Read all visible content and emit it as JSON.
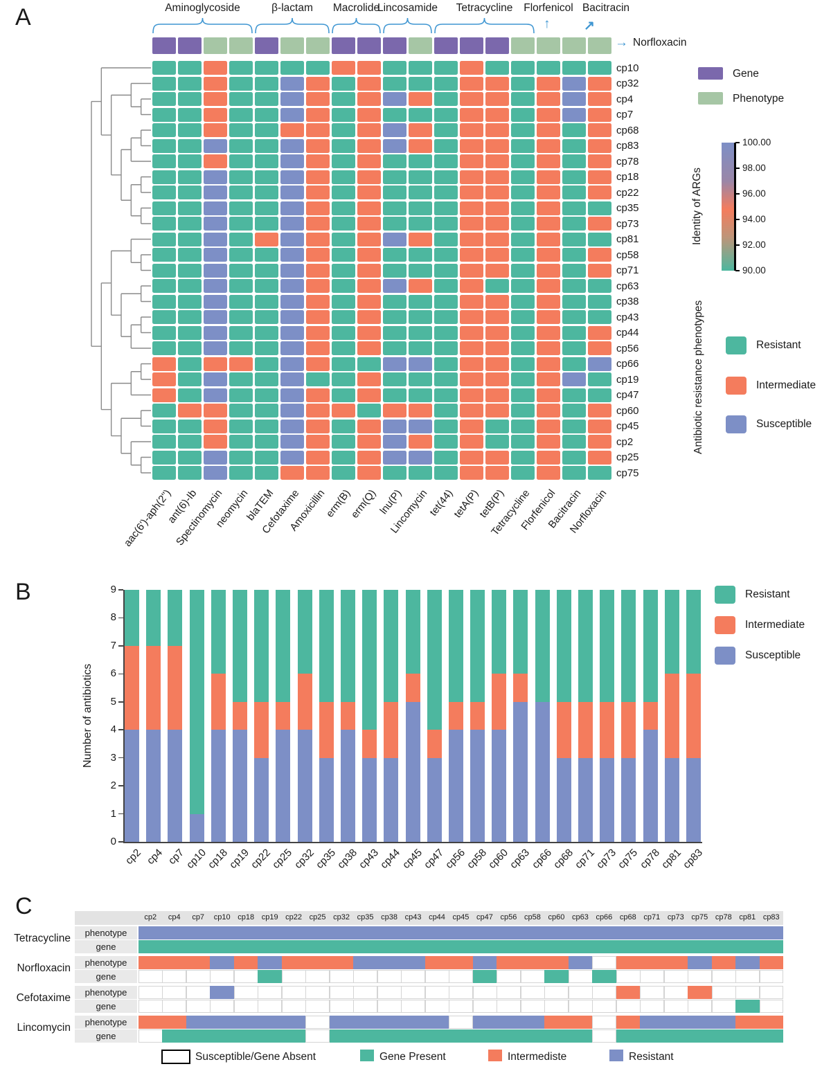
{
  "colors": {
    "resistant": "#4db79f",
    "intermediate": "#f47c5d",
    "susceptible": "#7d8fc6",
    "gene": "#7b68ac",
    "phenotype": "#a6c6a5",
    "accent": "#3f96d2",
    "white": "#ffffff"
  },
  "panelA": {
    "letter": "A",
    "annotation_legend": [
      "Gene",
      "Phenotype"
    ],
    "identity_legend": {
      "title": "Identity of ARGs",
      "ticks": [
        "100.00",
        "98.00",
        "96.00",
        "94.00",
        "92.00",
        "90.00"
      ]
    },
    "pheno_legend": {
      "title": "Antibiotic resistance phenotypes",
      "items": [
        "Resistant",
        "Intermediate",
        "Susceptible"
      ]
    },
    "dendrogram": [
      [
        "cp10",
        [
          [
            "cp32",
            [
              "cp4",
              "cp7"
            ]
          ],
          [
            [
              [
                "cp68",
                "cp83"
              ],
              "cp78"
            ],
            [
              [
                "cp18",
                "cp22"
              ],
              [
                "cp35",
                "cp73"
              ]
            ]
          ]
        ]
      ],
      [
        [
          [
            "cp81",
            [
              "cp58",
              "cp71"
            ]
          ],
          [
            [
              "cp63",
              "cp38"
            ],
            [
              [
                "cp43",
                "cp44"
              ],
              "cp56"
            ]
          ]
        ],
        [
          [
            [
              "cp66",
              "cp19"
            ],
            "cp47"
          ],
          [
            [
              "cp60",
              "cp45"
            ],
            [
              "cp2",
              [
                "cp25",
                "cp75"
              ]
            ]
          ]
        ]
      ]
    ]
  },
  "panelB": {
    "letter": "B",
    "legend": [
      "Resistant",
      "Intermediate",
      "Susceptible"
    ]
  },
  "panelC": {
    "letter": "C",
    "legend": [
      "Susceptible/Gene Absent",
      "Gene Present",
      "Intermediste",
      "Resistant"
    ]
  },
  "chart_data": [
    {
      "type": "heatmap",
      "panel": "A",
      "rows": [
        "cp10",
        "cp32",
        "cp4",
        "cp7",
        "cp68",
        "cp83",
        "cp78",
        "cp18",
        "cp22",
        "cp35",
        "cp73",
        "cp81",
        "cp58",
        "cp71",
        "cp63",
        "cp38",
        "cp43",
        "cp44",
        "cp56",
        "cp66",
        "cp19",
        "cp47",
        "cp60",
        "cp45",
        "cp2",
        "cp25",
        "cp75"
      ],
      "columns": [
        "aac(6')-aph(2'')",
        "ant(6)-Ib",
        "Spectinomycin",
        "neomycin",
        "blaTEM",
        "Cefotaxime",
        "Amoxicillin",
        "erm(B)",
        "erm(Q)",
        "lnu(P)",
        "Lincomycin",
        "tet(44)",
        "tetA(P)",
        "tetB(P)",
        "Tetracycline",
        "Florfenicol",
        "Bacitracin",
        "Norfloxacin"
      ],
      "annotation": [
        "gene",
        "gene",
        "phenotype",
        "phenotype",
        "gene",
        "phenotype",
        "phenotype",
        "gene",
        "gene",
        "gene",
        "phenotype",
        "gene",
        "gene",
        "gene",
        "phenotype",
        "phenotype",
        "phenotype",
        "phenotype"
      ],
      "class_groups": [
        {
          "name": "Aminoglycoside",
          "start": 0,
          "span": 4,
          "type": "brace"
        },
        {
          "name": "β-lactam",
          "start": 4,
          "span": 3,
          "type": "brace"
        },
        {
          "name": "Macrolide",
          "start": 7,
          "span": 2,
          "type": "brace"
        },
        {
          "name": "Lincosamide",
          "start": 9,
          "span": 2,
          "type": "brace"
        },
        {
          "name": "Tetracycline",
          "start": 11,
          "span": 4,
          "type": "brace"
        },
        {
          "name": "Florfenicol",
          "start": 15,
          "span": 1,
          "type": "arrow-up",
          "label_dx": 0
        },
        {
          "name": "Bacitracin",
          "start": 16,
          "span": 1,
          "type": "arrow-diag",
          "label_dx": 46
        },
        {
          "name": "Norfloxacin",
          "start": 17,
          "span": 1,
          "type": "arrow-right"
        }
      ],
      "cell_legend": {
        "G": "Resistant",
        "O": "Intermediate",
        "B": "Susceptible"
      },
      "matrix": [
        "GGOGGGGOOGGGOGGGGG",
        "GGOGGBOGOGGGOOGOBO",
        "GGOGGBOGOBOGOOGOBO",
        "GGOGGBOGOGGGOOGOBO",
        "GGOGGOOGOBOGOOGOGO",
        "GGBGGBOGOBOGOOGOGO",
        "GGOGGBOGOGGGOOGOGO",
        "GGBGGBOGOGGGOOGOGO",
        "GGBGGBOGOGGGOOGOGO",
        "GGBGGBOGOGGGOOGOGG",
        "GGBGGBOGOGGGOOGOGO",
        "GGBGOBOGOBOGOOGOGG",
        "GGBGGBOGOGGGOOGOGO",
        "GGBGGBOGOGGGOOGOGO",
        "GGBGGBOGOBOGOGGOGG",
        "GGBGGBOGOGGGOOGOGG",
        "GGBGGBOGOGGGOOGOGG",
        "GGBGGBOGOGGGOOGOGO",
        "GGBGGBOGOGGGOOGOGO",
        "OGOOGBOGGBBGOOGOGB",
        "OGBGGBGGOGGGOOGOBG",
        "OGBGGBOGOGGGOOGOGG",
        "GOOGGBOOGOOGOOGOGO",
        "GGOGGBOGOBBGOGGOGO",
        "GGOGGBOGOBOGOGGOGO",
        "GGBGGBOGOBBGOOGOGO",
        "GGBGGOOGOGGGOOGOGG"
      ]
    },
    {
      "type": "bar",
      "stacked": true,
      "panel": "B",
      "categories": [
        "cp2",
        "cp4",
        "cp7",
        "cp10",
        "cp18",
        "cp19",
        "cp22",
        "cp25",
        "cp32",
        "cp35",
        "cp38",
        "cp43",
        "cp44",
        "cp45",
        "cp47",
        "cp56",
        "cp58",
        "cp60",
        "cp63",
        "cp66",
        "cp68",
        "cp71",
        "cp73",
        "cp75",
        "cp78",
        "cp81",
        "cp83"
      ],
      "series": [
        {
          "name": "Susceptible",
          "values": [
            4,
            4,
            4,
            1,
            4,
            4,
            3,
            4,
            4,
            3,
            4,
            3,
            3,
            5,
            3,
            4,
            4,
            4,
            5,
            5,
            3,
            3,
            3,
            3,
            4,
            3,
            3
          ]
        },
        {
          "name": "Intermediate",
          "values": [
            3,
            3,
            3,
            0,
            2,
            1,
            2,
            1,
            2,
            2,
            1,
            1,
            2,
            1,
            1,
            1,
            1,
            2,
            1,
            0,
            2,
            2,
            2,
            2,
            1,
            3,
            3
          ]
        },
        {
          "name": "Resistant",
          "values": [
            2,
            2,
            2,
            8,
            3,
            4,
            4,
            4,
            3,
            4,
            4,
            5,
            4,
            3,
            5,
            4,
            4,
            3,
            3,
            4,
            4,
            4,
            4,
            4,
            4,
            3,
            3
          ]
        }
      ],
      "ylabel": "Number of antibiotics",
      "yticks": [
        0,
        1,
        2,
        3,
        4,
        5,
        6,
        7,
        8,
        9
      ],
      "ylim": [
        0,
        9
      ],
      "legend_position": "right-top"
    },
    {
      "type": "heatmap",
      "panel": "C",
      "strains": [
        "cp2",
        "cp4",
        "cp7",
        "cp10",
        "cp18",
        "cp19",
        "cp22",
        "cp25",
        "cp32",
        "cp35",
        "cp38",
        "cp43",
        "cp44",
        "cp45",
        "cp47",
        "cp56",
        "cp58",
        "cp60",
        "cp63",
        "cp66",
        "cp68",
        "cp71",
        "cp73",
        "cp75",
        "cp78",
        "cp81",
        "cp83"
      ],
      "sub_labels": [
        "phenotype",
        "gene"
      ],
      "value_legend": {
        "W": "Susceptible/Gene Absent",
        "G": "Gene Present",
        "I": "Intermediste",
        "R": "Resistant"
      },
      "row_groups": [
        {
          "name": "Tetracycline",
          "phenotype": "RRRRRRRRRRRRRRRRRRRRRRRRRRR",
          "gene": "GGGGGGGGGGGGGGGGGGGGGGGGGGG"
        },
        {
          "name": "Norfloxacin",
          "phenotype": "IIIRIRIIIRRRIIRIIIRWIIIRIRI",
          "gene": "WWWWWGWWWWWWWWGWWGWGWWWWWWW"
        },
        {
          "name": "Cefotaxime",
          "phenotype": "WWWRWWWWWWWWWWWWWWWWIWWIWWW",
          "gene": "WWWWWWWWWWWWWWWWWWWWWWWWWGW"
        },
        {
          "name": "Lincomycin",
          "phenotype": "IIRRRRRWRRRRRWRRRIIWIRRRRII",
          "gene": "WGGGGGGWGGGGGGGGGGGWGGGGGGG"
        }
      ]
    }
  ]
}
